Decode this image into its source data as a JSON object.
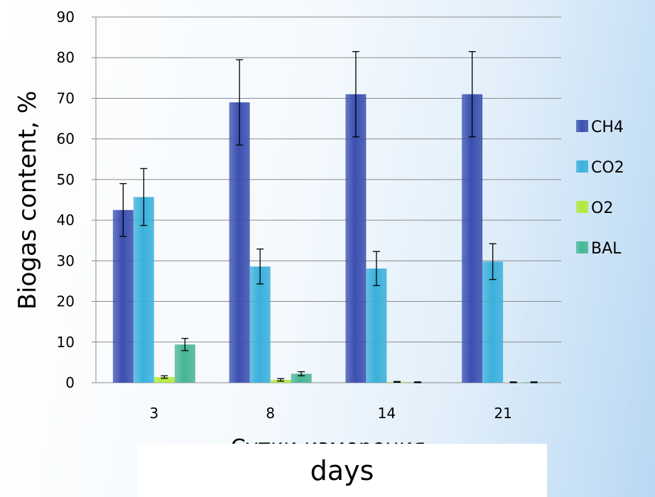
{
  "chart_data": {
    "type": "bar",
    "categories": [
      "3",
      "8",
      "14",
      "21"
    ],
    "series": [
      {
        "name": "CH4",
        "color": "#3b4fb0",
        "values": [
          42.5,
          69,
          71,
          71
        ],
        "errors": [
          6.5,
          10.5,
          10.5,
          10.5
        ]
      },
      {
        "name": "CO2",
        "color": "#3ab0db",
        "values": [
          45.7,
          28.6,
          28.1,
          29.8
        ],
        "errors": [
          7,
          4.3,
          4.2,
          4.4
        ]
      },
      {
        "name": "O2",
        "color": "#b4e83c",
        "values": [
          1.4,
          0.7,
          0.2,
          0.1
        ],
        "errors": [
          0.3,
          0.3,
          0.1,
          0.1
        ]
      },
      {
        "name": "BAL",
        "color": "#46b594",
        "values": [
          9.4,
          2.2,
          0.1,
          0.1
        ],
        "errors": [
          1.5,
          0.5,
          0.1,
          0.1
        ]
      }
    ],
    "yticks": [
      0,
      10,
      20,
      30,
      40,
      50,
      60,
      70,
      80,
      90
    ],
    "ylim": [
      0,
      90
    ],
    "ylabel": "Biogas content, %",
    "xlabel_covered": "Сутки измерения",
    "xlabel": "days",
    "grid": true,
    "legend_position": "right"
  }
}
